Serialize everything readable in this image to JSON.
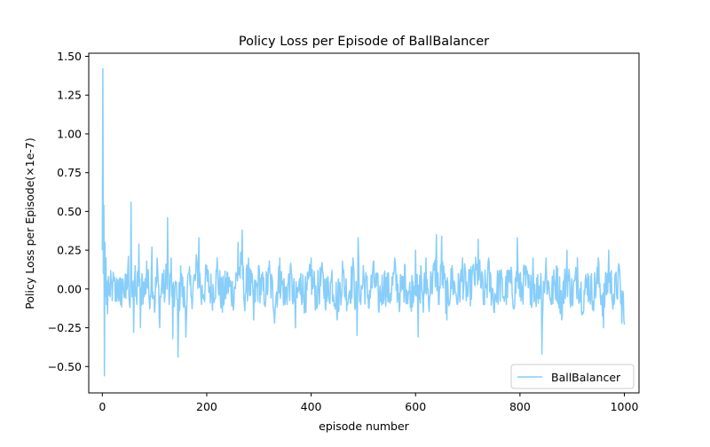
{
  "chart_data": {
    "type": "line",
    "title": "Policy Loss per Episode of BallBalancer",
    "xlabel": "episode number",
    "ylabel": "Policy Loss per Episode(×1e-7)",
    "xlim": [
      -26,
      1028
    ],
    "ylim": [
      -0.67,
      1.52
    ],
    "xticks": [
      0,
      200,
      400,
      600,
      800,
      1000
    ],
    "yticks": [
      -0.5,
      -0.25,
      0.0,
      0.25,
      0.5,
      0.75,
      1.0,
      1.25,
      1.5
    ],
    "ytick_labels": [
      "−0.50",
      "−0.25",
      "0.00",
      "0.25",
      "0.50",
      "0.75",
      "1.00",
      "1.25",
      "1.50"
    ],
    "grid": false,
    "legend_position": "bottom-right",
    "series": [
      {
        "name": "BallBalancer",
        "color": "#87cefa",
        "key_points": [
          [
            0,
            0.25
          ],
          [
            1,
            1.42
          ],
          [
            2,
            0.1
          ],
          [
            3,
            0.54
          ],
          [
            4,
            -0.56
          ],
          [
            5,
            0.3
          ],
          [
            6,
            -0.05
          ],
          [
            7,
            0.2
          ],
          [
            8,
            -0.1
          ],
          [
            9,
            0.05
          ],
          [
            10,
            -0.16
          ],
          [
            12,
            0.08
          ],
          [
            15,
            -0.05
          ],
          [
            20,
            0.05
          ],
          [
            25,
            -0.08
          ],
          [
            30,
            0.06
          ],
          [
            35,
            -0.1
          ],
          [
            40,
            0.05
          ],
          [
            45,
            -0.06
          ],
          [
            50,
            0.21
          ],
          [
            53,
            -0.12
          ],
          [
            55,
            0.56
          ],
          [
            57,
            -0.05
          ],
          [
            60,
            -0.28
          ],
          [
            63,
            0.15
          ],
          [
            66,
            -0.1
          ],
          [
            70,
            0.29
          ],
          [
            73,
            -0.25
          ],
          [
            76,
            0.1
          ],
          [
            80,
            -0.05
          ],
          [
            85,
            0.18
          ],
          [
            90,
            -0.08
          ],
          [
            95,
            0.27
          ],
          [
            100,
            -0.15
          ],
          [
            105,
            0.2
          ],
          [
            110,
            -0.25
          ],
          [
            115,
            0.1
          ],
          [
            120,
            -0.05
          ],
          [
            125,
            0.46
          ],
          [
            128,
            -0.1
          ],
          [
            132,
            0.2
          ],
          [
            135,
            -0.32
          ],
          [
            140,
            0.05
          ],
          [
            145,
            -0.44
          ],
          [
            150,
            0.15
          ],
          [
            155,
            -0.1
          ],
          [
            160,
            -0.31
          ],
          [
            165,
            0.1
          ],
          [
            170,
            -0.05
          ],
          [
            180,
            0.22
          ],
          [
            185,
            0.33
          ],
          [
            190,
            -0.1
          ],
          [
            200,
            0.15
          ],
          [
            210,
            -0.05
          ],
          [
            220,
            0.2
          ],
          [
            230,
            -0.15
          ],
          [
            240,
            0.1
          ],
          [
            250,
            -0.08
          ],
          [
            260,
            0.3
          ],
          [
            268,
            0.38
          ],
          [
            272,
            -0.1
          ],
          [
            280,
            0.2
          ],
          [
            290,
            -0.2
          ],
          [
            300,
            0.15
          ],
          [
            310,
            -0.1
          ],
          [
            320,
            0.18
          ],
          [
            330,
            -0.22
          ],
          [
            340,
            0.2
          ],
          [
            350,
            -0.1
          ],
          [
            360,
            0.15
          ],
          [
            370,
            -0.25
          ],
          [
            380,
            0.1
          ],
          [
            390,
            -0.15
          ],
          [
            400,
            0.2
          ],
          [
            410,
            -0.1
          ],
          [
            420,
            0.15
          ],
          [
            430,
            -0.08
          ],
          [
            440,
            0.12
          ],
          [
            450,
            -0.2
          ],
          [
            460,
            0.18
          ],
          [
            470,
            -0.1
          ],
          [
            480,
            0.2
          ],
          [
            488,
            -0.3
          ],
          [
            490,
            0.33
          ],
          [
            495,
            -0.1
          ],
          [
            500,
            0.15
          ],
          [
            510,
            -0.12
          ],
          [
            520,
            0.18
          ],
          [
            530,
            -0.15
          ],
          [
            540,
            0.1
          ],
          [
            550,
            -0.08
          ],
          [
            560,
            0.2
          ],
          [
            570,
            -0.1
          ],
          [
            580,
            0.15
          ],
          [
            590,
            -0.12
          ],
          [
            600,
            0.25
          ],
          [
            605,
            -0.31
          ],
          [
            610,
            0.15
          ],
          [
            615,
            -0.15
          ],
          [
            620,
            0.2
          ],
          [
            625,
            -0.1
          ],
          [
            630,
            0.1
          ],
          [
            640,
            0.35
          ],
          [
            645,
            -0.1
          ],
          [
            650,
            0.34
          ],
          [
            660,
            -0.2
          ],
          [
            670,
            0.15
          ],
          [
            680,
            -0.1
          ],
          [
            690,
            0.2
          ],
          [
            700,
            -0.05
          ],
          [
            710,
            0.15
          ],
          [
            720,
            0.32
          ],
          [
            730,
            -0.1
          ],
          [
            740,
            0.2
          ],
          [
            750,
            -0.15
          ],
          [
            760,
            0.1
          ],
          [
            770,
            -0.08
          ],
          [
            780,
            0.12
          ],
          [
            790,
            -0.1
          ],
          [
            795,
            0.33
          ],
          [
            800,
            -0.05
          ],
          [
            810,
            0.15
          ],
          [
            820,
            -0.1
          ],
          [
            825,
            0.2
          ],
          [
            830,
            -0.05
          ],
          [
            840,
            0.1
          ],
          [
            842,
            -0.42
          ],
          [
            845,
            0.05
          ],
          [
            850,
            0.2
          ],
          [
            860,
            -0.1
          ],
          [
            870,
            0.15
          ],
          [
            880,
            -0.2
          ],
          [
            890,
            0.25
          ],
          [
            900,
            -0.1
          ],
          [
            910,
            0.2
          ],
          [
            920,
            -0.15
          ],
          [
            930,
            0.1
          ],
          [
            940,
            -0.08
          ],
          [
            950,
            0.2
          ],
          [
            960,
            -0.25
          ],
          [
            970,
            0.25
          ],
          [
            980,
            -0.1
          ],
          [
            990,
            0.15
          ],
          [
            995,
            -0.22
          ],
          [
            1000,
            -0.23
          ]
        ]
      }
    ]
  }
}
